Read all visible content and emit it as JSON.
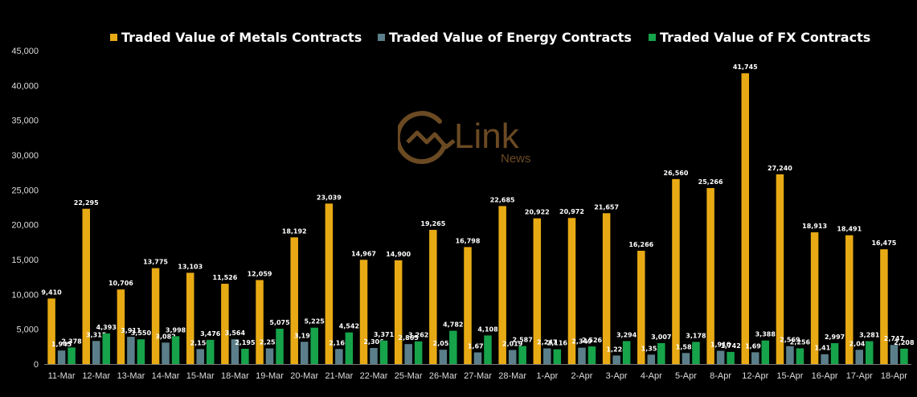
{
  "colors": {
    "metals": "#E8AA14",
    "energy": "#5B7F8A",
    "fx": "#16A34A",
    "text": "#FFFFFF",
    "axis_text": "#DDDDDD",
    "watermark": "#6B4A23"
  },
  "watermark": {
    "main": "Link",
    "sub": "News",
    "icon": "link-news-logo-icon"
  },
  "chart_data": {
    "type": "bar",
    "title": "",
    "xlabel": "",
    "ylabel": "",
    "ylim": [
      0,
      45000
    ],
    "yticks": [
      "0",
      "5,000",
      "10,000",
      "15,000",
      "20,000",
      "25,000",
      "30,000",
      "35,000",
      "40,000",
      "45,000"
    ],
    "grid": false,
    "legend_position": "top",
    "categories": [
      "11-Mar",
      "12-Mar",
      "13-Mar",
      "14-Mar",
      "15-Mar",
      "18-Mar",
      "19-Mar",
      "20-Mar",
      "21-Mar",
      "22-Mar",
      "25-Mar",
      "26-Mar",
      "27-Mar",
      "28-Mar",
      "1-Apr",
      "2-Apr",
      "3-Apr",
      "4-Apr",
      "5-Apr",
      "8-Apr",
      "12-Apr",
      "15-Apr",
      "16-Apr",
      "17-Apr",
      "18-Apr"
    ],
    "series": [
      {
        "name": "Traded Value of Metals Contracts",
        "values": [
          9410,
          22295,
          10706,
          13775,
          13103,
          11526,
          12059,
          18192,
          23039,
          14967,
          14900,
          19265,
          16798,
          22685,
          20922,
          20972,
          21657,
          16266,
          26560,
          25266,
          41745,
          27240,
          18913,
          18491,
          16475
        ],
        "labels": [
          "9,410",
          "22,295",
          "10,706",
          "13,775",
          "13,103",
          "11,526",
          "12,059",
          "18,192",
          "23,039",
          "14,967",
          "14,900",
          "19,265",
          "16,798",
          "22,685",
          "20,922",
          "20,972",
          "21,657",
          "16,266",
          "26,560",
          "25,266",
          "41,745",
          "27,240",
          "18,913",
          "18,491",
          "16,475"
        ]
      },
      {
        "name": "Traded Value of Energy Contracts",
        "values": [
          1945,
          3315,
          3911,
          3082,
          2150,
          3564,
          2252,
          3197,
          2160,
          2306,
          2865,
          2053,
          1672,
          2019,
          2247,
          2349,
          1224,
          1353,
          1585,
          1910,
          1691,
          2569,
          1414,
          2047,
          2747
        ],
        "labels": [
          "1,945",
          "3,315",
          "3,911",
          "3,082",
          "2,150",
          "3,564",
          "2,252",
          "3,197",
          "2,160",
          "2,306",
          "2,865",
          "2,053",
          "1,672",
          "2,019",
          "2,247",
          "2,349",
          "1,224",
          "1,353",
          "1,585",
          "1,910",
          "1,691",
          "2,569",
          "1,414",
          "2,047",
          "2,747"
        ]
      },
      {
        "name": "Traded Value of FX Contracts",
        "values": [
          2378,
          4393,
          3550,
          3998,
          3476,
          2195,
          5075,
          5225,
          4542,
          3371,
          3262,
          4782,
          4108,
          2587,
          2116,
          2526,
          3294,
          3007,
          3178,
          1742,
          3388,
          2256,
          2997,
          3281,
          2208
        ],
        "labels": [
          "2,378",
          "4,393",
          "3,550",
          "3,998",
          "3,476",
          "2,195",
          "5,075",
          "5,225",
          "4,542",
          "3,371",
          "3,262",
          "4,782",
          "4,108",
          "2,587",
          "2,116",
          "2,526",
          "3,294",
          "3,007",
          "3,178",
          "1,742",
          "3,388",
          "2,256",
          "2,997",
          "3,281",
          "2,208"
        ]
      }
    ]
  }
}
